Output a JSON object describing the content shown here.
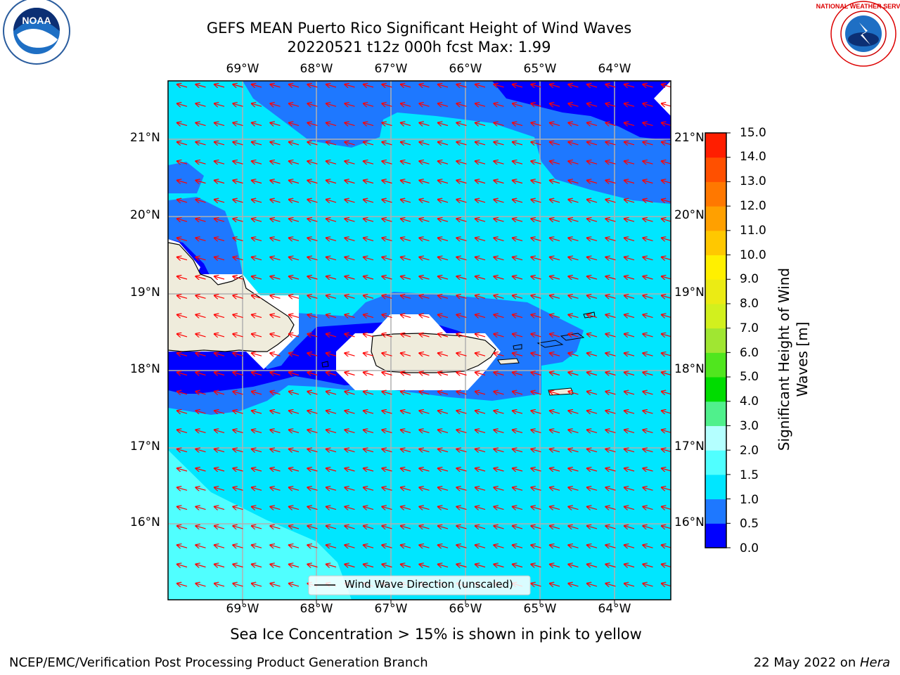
{
  "title_line1": "GEFS MEAN Puerto Rico Significant Height of Wind Waves",
  "title_line2": "20220521 t12z 000h fcst   Max: 1.99",
  "lon_labels": [
    "69°W",
    "68°W",
    "67°W",
    "66°W",
    "65°W",
    "64°W"
  ],
  "lat_labels": [
    "21°N",
    "20°N",
    "19°N",
    "18°N",
    "17°N",
    "16°N"
  ],
  "colorbar": {
    "label_line1": "Significant Height of Wind",
    "label_line2": "Waves [m]",
    "ticks": [
      "0.0",
      "0.5",
      "1.0",
      "1.5",
      "2.0",
      "3.0",
      "4.0",
      "5.0",
      "6.0",
      "7.0",
      "8.0",
      "9.0",
      "10.0",
      "11.0",
      "12.0",
      "13.0",
      "14.0",
      "15.0"
    ],
    "colors": [
      "#0000ff",
      "#1e78ff",
      "#00e6ff",
      "#50ffff",
      "#b4ffff",
      "#50f08c",
      "#00dc00",
      "#50e61e",
      "#a0e632",
      "#d2f01e",
      "#ebeb14",
      "#fff000",
      "#ffc800",
      "#ffa000",
      "#ff7800",
      "#ff5000",
      "#ff1e00"
    ]
  },
  "legend_label": "Wind Wave Direction (unscaled)",
  "sea_ice_note": "Sea Ice Concentration > 15% is shown in pink to yellow",
  "footer_left": "NCEP/EMC/Verification Post Processing Product Generation Branch",
  "footer_date": "22 May 2022 on ",
  "footer_host": "Hera",
  "logos": {
    "left": "NOAA",
    "right": "NATIONAL WEATHER SERVICE"
  }
}
